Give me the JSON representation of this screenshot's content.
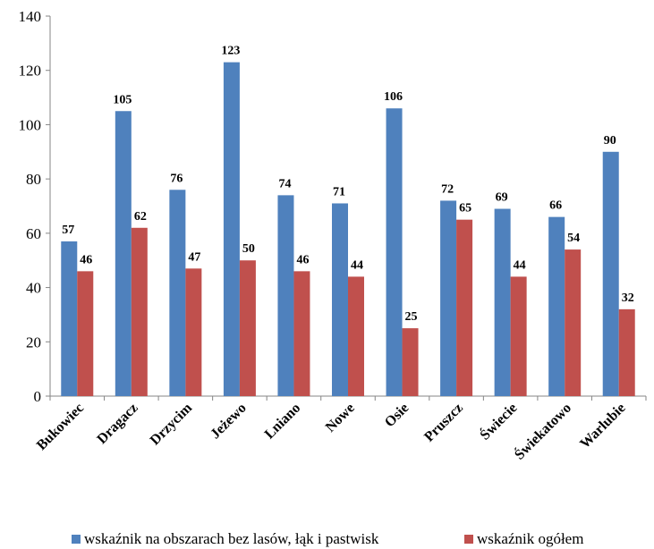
{
  "chart_data": {
    "type": "bar",
    "title": "",
    "xlabel": "",
    "ylabel": "",
    "ylim": [
      0,
      140
    ],
    "yticks": [
      0,
      20,
      40,
      60,
      80,
      100,
      120,
      140
    ],
    "grid": false,
    "legend_position": "bottom",
    "categories": [
      "Bukowiec",
      "Dragacz",
      "Drzycim",
      "Jeżewo",
      "Lniano",
      "Nowe",
      "Osie",
      "Pruszcz",
      "Świecie",
      "Świekatowo",
      "Warlubie"
    ],
    "series": [
      {
        "name": "wskaźnik na obszarach bez lasów, łąk i pastwisk",
        "color": "#4f81bd",
        "values": [
          57,
          105,
          76,
          123,
          74,
          71,
          106,
          72,
          69,
          66,
          90
        ]
      },
      {
        "name": "wskaźnik ogółem",
        "color": "#c0504d",
        "values": [
          46,
          62,
          47,
          50,
          46,
          44,
          25,
          65,
          44,
          54,
          32
        ]
      }
    ]
  }
}
